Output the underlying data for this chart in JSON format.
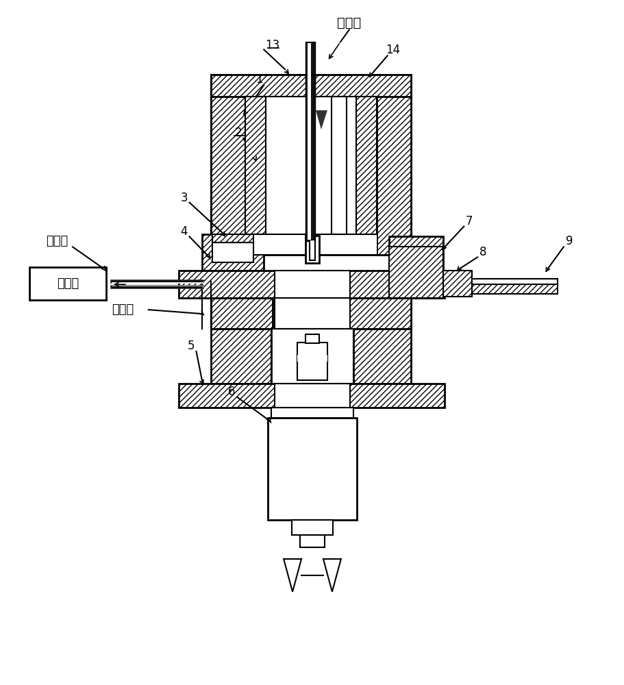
{
  "bg_color": "#ffffff",
  "labels": {
    "jin_qi_kou": "进气口",
    "chu_qi_kou": "出气口",
    "jian_ce_qi": "检测器",
    "jie_xi_qiang": "解析腔",
    "1": "1",
    "2": "2",
    "3": "3",
    "4": "4",
    "5": "5",
    "6": "6",
    "7": "7",
    "8": "8",
    "9": "9",
    "13": "13",
    "14": "14"
  },
  "font_size_label": 13,
  "font_size_num": 12
}
